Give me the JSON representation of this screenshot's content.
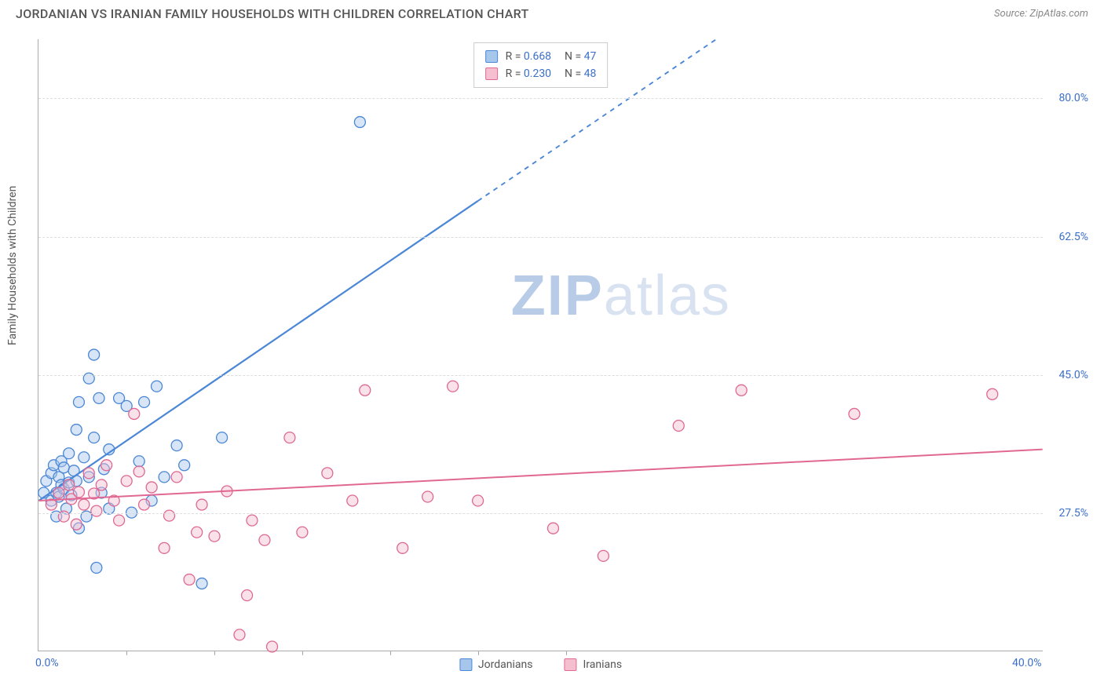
{
  "title": "JORDANIAN VS IRANIAN FAMILY HOUSEHOLDS WITH CHILDREN CORRELATION CHART",
  "source": "Source: ZipAtlas.com",
  "ylabel": "Family Households with Children",
  "watermark": {
    "bold": "ZIP",
    "light": "atlas"
  },
  "chart": {
    "type": "scatter",
    "xlim": [
      0,
      40
    ],
    "ylim": [
      10,
      87.5
    ],
    "x_ticks": [
      0,
      3.5,
      7,
      10.5,
      14,
      17.5,
      21,
      40
    ],
    "x_tick_labels_shown": {
      "0": "0.0%",
      "40": "40.0%"
    },
    "y_ticks": [
      27.5,
      45.0,
      62.5,
      80.0
    ],
    "y_tick_labels": [
      "27.5%",
      "45.0%",
      "62.5%",
      "80.0%"
    ],
    "background_color": "#ffffff",
    "grid_color": "#dddddd",
    "axis_color": "#aaaaaa",
    "marker_radius": 7,
    "marker_opacity": 0.45,
    "series": [
      {
        "name": "Jordanians",
        "fill": "#a6c6ec",
        "stroke": "#4b87d6",
        "R": "0.668",
        "N": "47",
        "trend": {
          "x1": 0,
          "y1": 29,
          "x2_solid": 17.5,
          "y2_solid": 67,
          "x2_dash": 27,
          "y2_dash": 87.5,
          "stroke_width": 2.2
        },
        "points": [
          [
            0.2,
            30
          ],
          [
            0.3,
            31.5
          ],
          [
            0.5,
            29
          ],
          [
            0.5,
            32.5
          ],
          [
            0.6,
            33.5
          ],
          [
            0.7,
            27
          ],
          [
            0.7,
            30
          ],
          [
            0.8,
            32
          ],
          [
            0.8,
            29.5
          ],
          [
            0.9,
            31
          ],
          [
            0.9,
            34
          ],
          [
            1.0,
            30.5
          ],
          [
            1.0,
            33.2
          ],
          [
            1.1,
            28
          ],
          [
            1.2,
            31.3
          ],
          [
            1.2,
            35
          ],
          [
            1.3,
            29.7
          ],
          [
            1.4,
            32.8
          ],
          [
            1.5,
            38
          ],
          [
            1.5,
            31.5
          ],
          [
            1.6,
            41.5
          ],
          [
            1.8,
            34.5
          ],
          [
            1.9,
            27
          ],
          [
            2.0,
            32
          ],
          [
            2.0,
            44.5
          ],
          [
            2.2,
            47.5
          ],
          [
            2.2,
            37
          ],
          [
            2.4,
            42
          ],
          [
            2.5,
            30
          ],
          [
            2.6,
            33
          ],
          [
            2.8,
            28
          ],
          [
            2.8,
            35.5
          ],
          [
            3.2,
            42
          ],
          [
            3.5,
            41
          ],
          [
            3.7,
            27.5
          ],
          [
            4.0,
            34
          ],
          [
            4.2,
            41.5
          ],
          [
            4.5,
            29
          ],
          [
            4.7,
            43.5
          ],
          [
            5.0,
            32
          ],
          [
            5.5,
            36
          ],
          [
            5.8,
            33.5
          ],
          [
            6.5,
            18.5
          ],
          [
            7.3,
            37
          ],
          [
            2.3,
            20.5
          ],
          [
            1.6,
            25.5
          ],
          [
            12.8,
            77
          ]
        ]
      },
      {
        "name": "Iranians",
        "fill": "#f5bfd0",
        "stroke": "#e06892",
        "R": "0.230",
        "N": "48",
        "trend": {
          "x1": 0,
          "y1": 29,
          "x2_solid": 40,
          "y2_solid": 35.5,
          "x2_dash": 40,
          "y2_dash": 35.5,
          "stroke_width": 2
        },
        "points": [
          [
            0.5,
            28.5
          ],
          [
            0.8,
            30
          ],
          [
            1.0,
            27
          ],
          [
            1.2,
            31
          ],
          [
            1.3,
            29.2
          ],
          [
            1.5,
            26
          ],
          [
            1.6,
            30.1
          ],
          [
            1.8,
            28.5
          ],
          [
            2.0,
            32.5
          ],
          [
            2.2,
            29.9
          ],
          [
            2.3,
            27.7
          ],
          [
            2.5,
            31
          ],
          [
            2.7,
            33.5
          ],
          [
            3.0,
            29
          ],
          [
            3.2,
            26.5
          ],
          [
            3.5,
            31.5
          ],
          [
            3.8,
            40
          ],
          [
            4.0,
            32.7
          ],
          [
            4.2,
            28.5
          ],
          [
            4.5,
            30.7
          ],
          [
            5.0,
            23
          ],
          [
            5.2,
            27.1
          ],
          [
            5.5,
            32
          ],
          [
            6.0,
            19
          ],
          [
            6.3,
            25
          ],
          [
            6.5,
            28.5
          ],
          [
            7.0,
            24.5
          ],
          [
            7.5,
            30.2
          ],
          [
            8.0,
            12
          ],
          [
            8.3,
            17
          ],
          [
            8.5,
            26.5
          ],
          [
            9.0,
            24
          ],
          [
            10.0,
            37
          ],
          [
            10.5,
            25
          ],
          [
            11.5,
            32.5
          ],
          [
            12.5,
            29
          ],
          [
            13.0,
            43
          ],
          [
            14.5,
            23
          ],
          [
            15.5,
            29.5
          ],
          [
            16.5,
            43.5
          ],
          [
            17.5,
            29
          ],
          [
            20.5,
            25.5
          ],
          [
            22.5,
            22
          ],
          [
            25.5,
            38.5
          ],
          [
            28,
            43
          ],
          [
            32.5,
            40
          ],
          [
            38,
            42.5
          ],
          [
            9.3,
            10.5
          ]
        ]
      }
    ]
  },
  "legend_labels": [
    "Jordanians",
    "Iranians"
  ]
}
